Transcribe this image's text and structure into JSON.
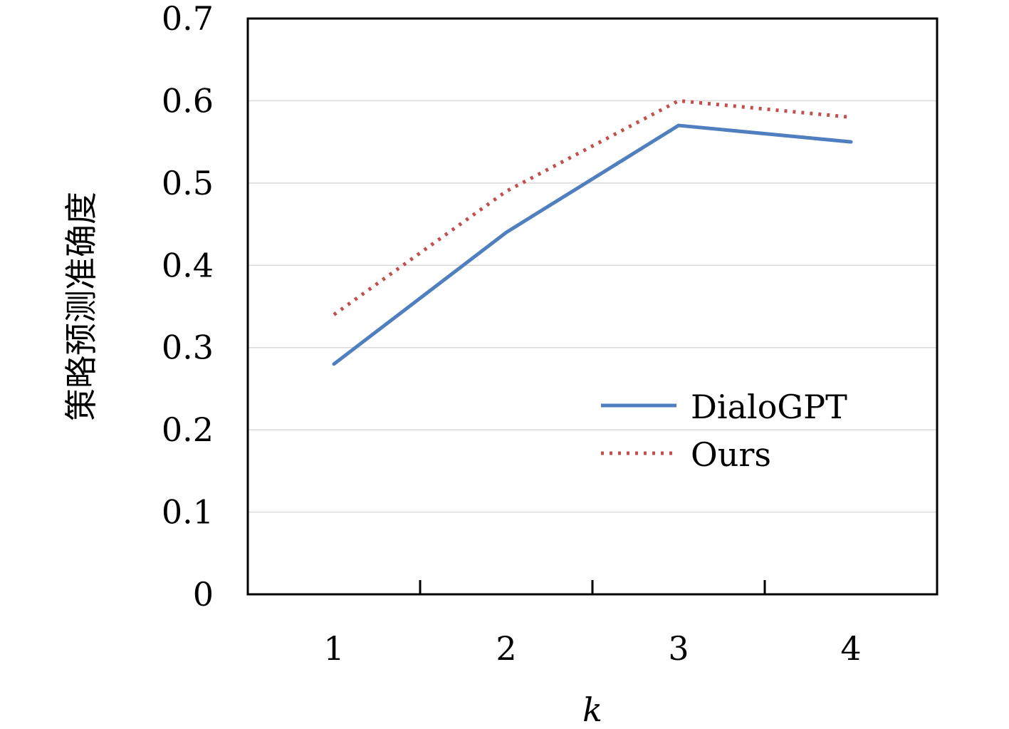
{
  "chart_data": {
    "type": "line",
    "categories": [
      "1",
      "2",
      "3",
      "4"
    ],
    "xlabel": "k",
    "ylabel": "策略预测准确度",
    "ylim": [
      0,
      0.7
    ],
    "yticks": [
      "0",
      "0.1",
      "0.2",
      "0.3",
      "0.4",
      "0.5",
      "0.6",
      "0.7"
    ],
    "grid": "horizontal",
    "legend_position": "right",
    "series": [
      {
        "name": "DialoGPT",
        "values": [
          0.28,
          0.44,
          0.57,
          0.55
        ],
        "color": "#4f7fbf",
        "style": "solid"
      },
      {
        "name": "Ours",
        "values": [
          0.34,
          0.49,
          0.6,
          0.58
        ],
        "color": "#c0504d",
        "style": "dotted"
      }
    ]
  }
}
